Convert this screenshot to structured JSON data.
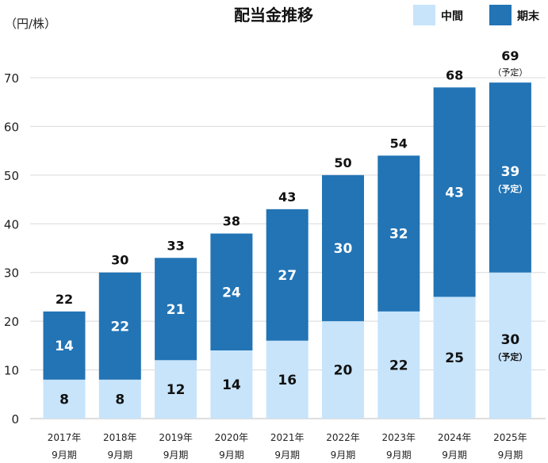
{
  "chart_data": {
    "type": "bar",
    "stacked": true,
    "title": "配当金推移",
    "unit_label": "（円/株）",
    "categories": [
      [
        "2017年",
        "9月期"
      ],
      [
        "2018年",
        "9月期"
      ],
      [
        "2019年",
        "9月期"
      ],
      [
        "2020年",
        "9月期"
      ],
      [
        "2021年",
        "9月期"
      ],
      [
        "2022年",
        "9月期"
      ],
      [
        "2023年",
        "9月期"
      ],
      [
        "2024年",
        "9月期"
      ],
      [
        "2025年",
        "9月期"
      ]
    ],
    "series": [
      {
        "name": "中間",
        "color": "#c7e4fb",
        "values": [
          8,
          8,
          12,
          14,
          16,
          20,
          22,
          25,
          30
        ]
      },
      {
        "name": "期末",
        "color": "#2274b5",
        "values": [
          14,
          22,
          21,
          24,
          27,
          30,
          32,
          43,
          39
        ]
      }
    ],
    "totals": [
      22,
      30,
      33,
      38,
      43,
      50,
      54,
      68,
      69
    ],
    "forecast_note": "（予定）",
    "forecast_index": 8,
    "yticks": [
      0,
      10,
      20,
      30,
      40,
      50,
      60,
      70
    ],
    "ylim": [
      0,
      70
    ],
    "grid": true,
    "legend_position": "top-right"
  }
}
